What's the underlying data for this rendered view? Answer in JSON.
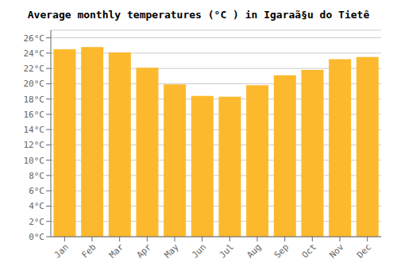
{
  "chart_data": {
    "type": "bar",
    "title": "Average monthly temperatures (°C ) in Igaraã§u do Tietê",
    "categories": [
      "Jan",
      "Feb",
      "Mar",
      "Apr",
      "May",
      "Jun",
      "Jul",
      "Aug",
      "Sep",
      "Oct",
      "Nov",
      "Dec"
    ],
    "values": [
      24.5,
      24.8,
      24.1,
      22.1,
      19.9,
      18.4,
      18.3,
      19.8,
      21.1,
      21.8,
      23.2,
      23.5
    ],
    "color": "#FDB92E",
    "ylim": [
      0,
      27
    ],
    "yticks": [
      {
        "value": 0,
        "label": "0°C"
      },
      {
        "value": 2,
        "label": "2°C"
      },
      {
        "value": 4,
        "label": "4°C"
      },
      {
        "value": 6,
        "label": "6°C"
      },
      {
        "value": 8,
        "label": "8°C"
      },
      {
        "value": 10,
        "label": "10°C"
      },
      {
        "value": 12,
        "label": "12°C"
      },
      {
        "value": 14,
        "label": "14°C"
      },
      {
        "value": 16,
        "label": "16°C"
      },
      {
        "value": 18,
        "label": "18°C"
      },
      {
        "value": 20,
        "label": "20°C"
      },
      {
        "value": 22,
        "label": "22°C"
      },
      {
        "value": 24,
        "label": "24°C"
      },
      {
        "value": 26,
        "label": "26°C"
      }
    ],
    "grid": true
  }
}
